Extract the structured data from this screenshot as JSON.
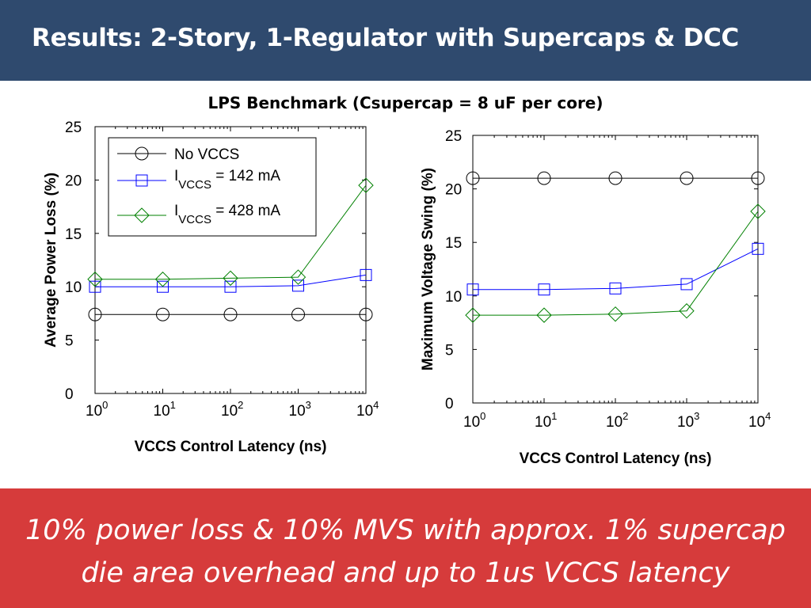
{
  "slide": {
    "title": "Results: 2-Story, 1-Regulator with Supercaps & DCC",
    "benchmark_title": "LPS Benchmark (Csupercap = 8 uF per core)",
    "conclusion": "10% power loss & 10% MVS with approx. 1% supercap die area overhead and up to 1us VCCS latency",
    "colors": {
      "header": "#2f4a6e",
      "footer": "#d63b3b"
    }
  },
  "legend": {
    "items": [
      {
        "text": "No VCCS"
      },
      {
        "prefix": "I",
        "sub": "VCCS",
        "suffix": " = 142 mA"
      },
      {
        "prefix": "I",
        "sub": "VCCS",
        "suffix": " = 428 mA"
      }
    ]
  },
  "chart_data": [
    {
      "type": "line",
      "title": "",
      "xlabel": "VCCS Control Latency (ns)",
      "ylabel": "Average Power Loss (%)",
      "xscale": "log",
      "x": [
        1,
        10,
        100,
        1000,
        10000
      ],
      "xlim": [
        1,
        10000
      ],
      "ylim": [
        0,
        25
      ],
      "yticks": [
        "0",
        "5",
        "10",
        "15",
        "20",
        "25"
      ],
      "xticks": [
        {
          "base": "10",
          "exp": "0"
        },
        {
          "base": "10",
          "exp": "1"
        },
        {
          "base": "10",
          "exp": "2"
        },
        {
          "base": "10",
          "exp": "3"
        },
        {
          "base": "10",
          "exp": "4"
        }
      ],
      "legend_location": "top-left",
      "series": [
        {
          "name": "No VCCS",
          "marker": "circle",
          "color": "#000000",
          "values": [
            7.4,
            7.4,
            7.4,
            7.4,
            7.4
          ]
        },
        {
          "name": "IVCCS = 142 mA",
          "marker": "square",
          "color": "#0000ff",
          "values": [
            10.0,
            10.0,
            10.0,
            10.1,
            11.1
          ]
        },
        {
          "name": "IVCCS = 428 mA",
          "marker": "diamond",
          "color": "#008000",
          "values": [
            10.7,
            10.7,
            10.8,
            10.9,
            19.5
          ]
        }
      ]
    },
    {
      "type": "line",
      "title": "",
      "xlabel": "VCCS Control Latency (ns)",
      "ylabel": "Maximum Voltage Swing (%)",
      "xscale": "log",
      "x": [
        1,
        10,
        100,
        1000,
        10000
      ],
      "xlim": [
        1,
        10000
      ],
      "ylim": [
        0,
        25
      ],
      "yticks": [
        "0",
        "5",
        "10",
        "15",
        "20",
        "25"
      ],
      "xticks": [
        {
          "base": "10",
          "exp": "0"
        },
        {
          "base": "10",
          "exp": "1"
        },
        {
          "base": "10",
          "exp": "2"
        },
        {
          "base": "10",
          "exp": "3"
        },
        {
          "base": "10",
          "exp": "4"
        }
      ],
      "series": [
        {
          "name": "No VCCS",
          "marker": "circle",
          "color": "#000000",
          "values": [
            21.0,
            21.0,
            21.0,
            21.0,
            21.0
          ]
        },
        {
          "name": "IVCCS = 142 mA",
          "marker": "square",
          "color": "#0000ff",
          "values": [
            10.6,
            10.6,
            10.7,
            11.1,
            14.4
          ]
        },
        {
          "name": "IVCCS = 428 mA",
          "marker": "diamond",
          "color": "#008000",
          "values": [
            8.2,
            8.2,
            8.3,
            8.6,
            17.9
          ]
        }
      ]
    }
  ]
}
